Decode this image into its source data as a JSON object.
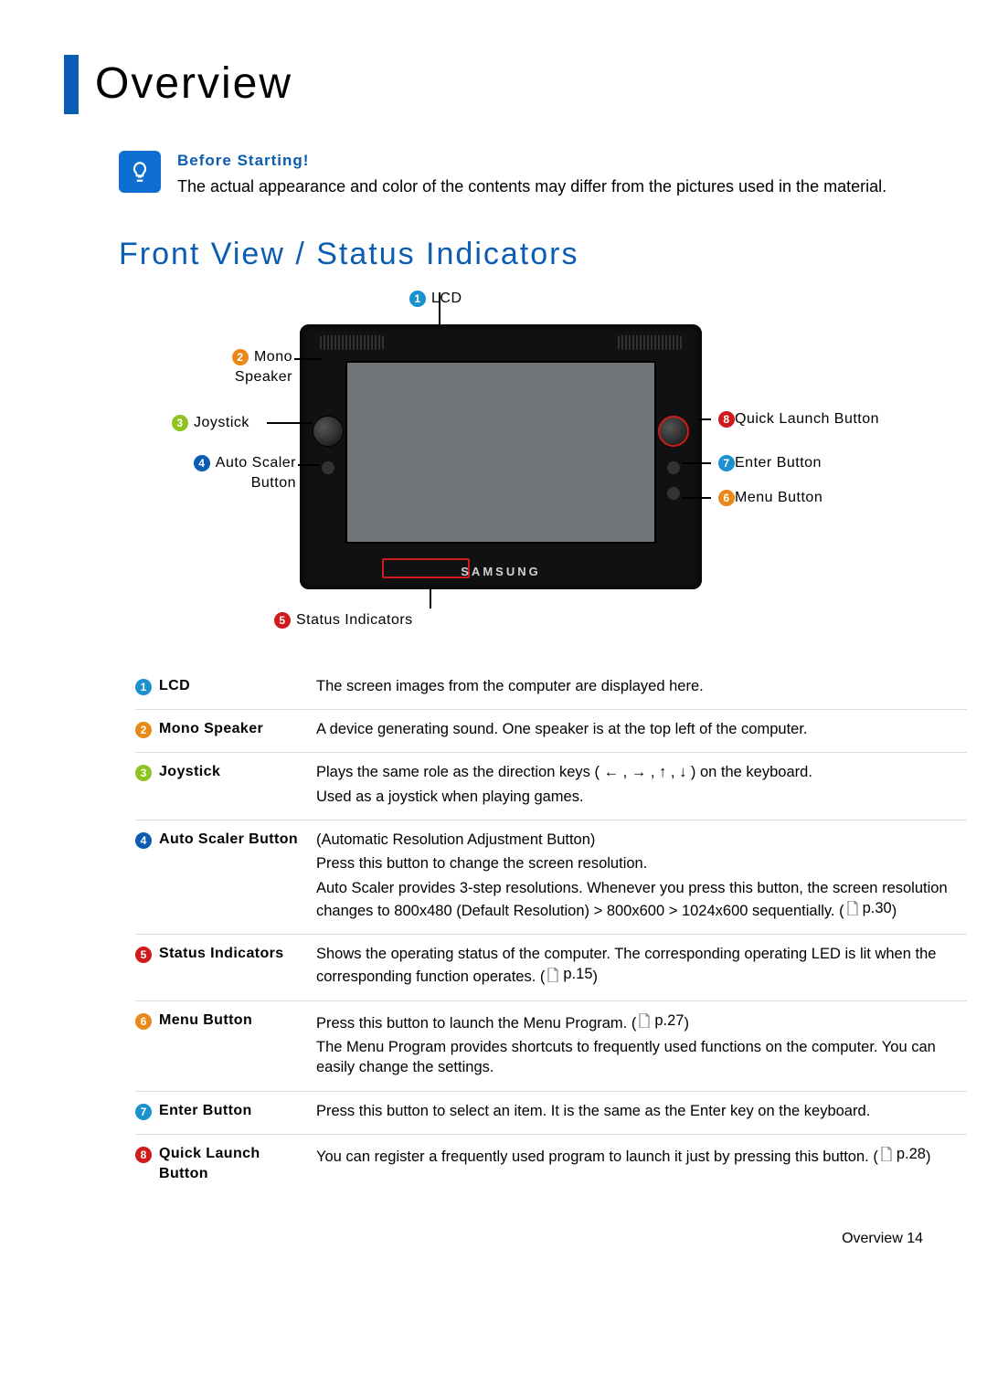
{
  "colors": {
    "accent": "#0a5db3",
    "number_colors": [
      "#1c91d0",
      "#e8891a",
      "#8fc31f",
      "#0a5db3",
      "#cf1b1b",
      "#e8891a",
      "#1c91d0",
      "#cf1b1b"
    ]
  },
  "page_title": "Overview",
  "info": {
    "heading": "Before Starting!",
    "body": "The actual appearance and color of the contents may differ from the pictures used in the material."
  },
  "section_title": "Front View / Status Indicators",
  "brand": "SAMSUNG",
  "callouts": {
    "c1": "LCD",
    "c2_a": "Mono",
    "c2_b": "Speaker",
    "c3": "Joystick",
    "c4_a": "Auto Scaler",
    "c4_b": "Button",
    "c5": "Status Indicators",
    "c6": "Menu Button",
    "c7": "Enter Button",
    "c8": "Quick Launch Button"
  },
  "rows": [
    {
      "n": "1",
      "label": "LCD",
      "lines": [
        "The screen images from the computer are displayed here."
      ]
    },
    {
      "n": "2",
      "label": "Mono Speaker",
      "lines": [
        "A device generating sound. One speaker is at the top left of the computer."
      ]
    },
    {
      "n": "3",
      "label": "Joystick",
      "lines": [
        "Plays the same role as the direction keys ( ← , → , ↑ , ↓ ) on the keyboard.",
        "Used as a joystick when playing games."
      ]
    },
    {
      "n": "4",
      "label": "Auto Scaler Button",
      "lines": [
        "(Automatic Resolution Adjustment Button)",
        "Press this button to change the screen resolution.",
        "Auto Scaler provides 3-step resolutions. Whenever you press this button, the screen resolution changes to 800x480 (Default Resolution) > 800x600 > 1024x600 sequentially. ( 📄 p.30)"
      ]
    },
    {
      "n": "5",
      "label": "Status Indicators",
      "lines": [
        "Shows the operating status of the computer. The corresponding operating LED is lit when the corresponding function operates. ( 📄 p.15)"
      ]
    },
    {
      "n": "6",
      "label": "Menu Button",
      "lines": [
        "Press this button to launch the Menu Program. ( 📄 p.27)",
        "The Menu Program provides shortcuts to frequently used functions on the computer. You can easily change the settings."
      ]
    },
    {
      "n": "7",
      "label": "Enter Button",
      "lines": [
        "Press this button to select an item. It is the same as the Enter key on the keyboard."
      ]
    },
    {
      "n": "8",
      "label": "Quick Launch Button",
      "lines": [
        "You can register a frequently used program to launch it just by pressing this button. ( 📄 p.28)"
      ]
    }
  ],
  "footer": "Overview   14"
}
